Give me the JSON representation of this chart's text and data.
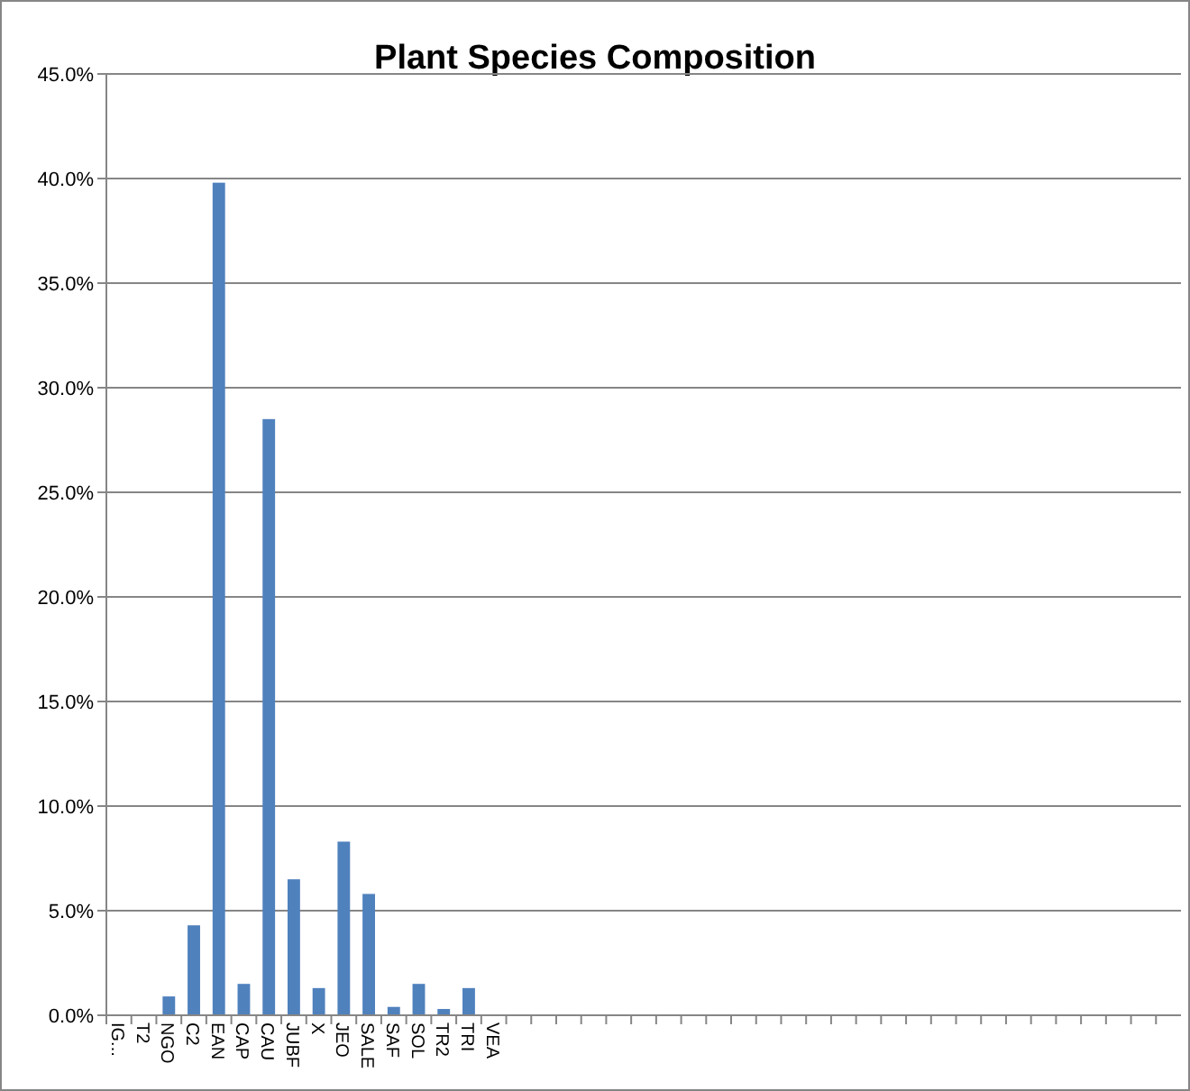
{
  "chart_data": {
    "type": "bar",
    "title": "Plant Species Composition",
    "categories": [
      "IG...",
      "T2",
      "NGO",
      "C2",
      "EAN",
      "CAP",
      "CAU",
      "JUBF",
      "X",
      "JEO",
      "SALE",
      "SAF",
      "SOL",
      "TR2",
      "TRI",
      "VEA",
      null,
      null,
      null,
      null,
      null,
      null,
      null,
      null,
      null,
      null,
      null,
      null,
      null,
      null,
      null,
      null,
      null,
      null,
      null,
      null,
      null,
      null,
      null,
      null,
      null,
      null,
      null
    ],
    "values": [
      0,
      0,
      0.9,
      4.3,
      39.8,
      1.5,
      28.5,
      6.5,
      1.3,
      8.3,
      5.8,
      0.4,
      1.5,
      0.3,
      1.3,
      0,
      0,
      0,
      0,
      0,
      0,
      0,
      0,
      0,
      0,
      0,
      0,
      0,
      0,
      0,
      0,
      0,
      0,
      0,
      0,
      0,
      0,
      0,
      0,
      0,
      0,
      0,
      0
    ],
    "color": "#4f81bd",
    "ylim": [
      0,
      45
    ],
    "yticks": [
      {
        "value": 0,
        "label": "0.0%"
      },
      {
        "value": 5,
        "label": "5.0%"
      },
      {
        "value": 10,
        "label": "10.0%"
      },
      {
        "value": 15,
        "label": "15.0%"
      },
      {
        "value": 20,
        "label": "20.0%"
      },
      {
        "value": 25,
        "label": "25.0%"
      },
      {
        "value": 30,
        "label": "30.0%"
      },
      {
        "value": 35,
        "label": "35.0%"
      },
      {
        "value": 40,
        "label": "40.0%"
      },
      {
        "value": 45,
        "label": "45.0%"
      }
    ],
    "grid": "y"
  }
}
